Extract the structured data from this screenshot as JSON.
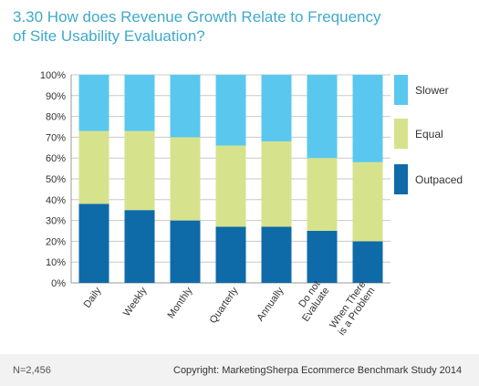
{
  "title": {
    "line1": "3.30 How does Revenue Growth Relate to Frequency",
    "line2": "of Site Usability Evaluation?"
  },
  "footer": {
    "n": "N=2,456",
    "copyright": "Copyright: MarketingSherpa Ecommerce Benchmark Study 2014"
  },
  "chart_data": {
    "type": "bar",
    "stacked": true,
    "categories": [
      [
        "Daily"
      ],
      [
        "Weekly"
      ],
      [
        "Monthly"
      ],
      [
        "Quarterly"
      ],
      [
        "Annually"
      ],
      [
        "Do not",
        "Evaluate"
      ],
      [
        "When There",
        "is a Problem"
      ]
    ],
    "series": [
      {
        "name": "Outpaced",
        "color": "#0f6aa8",
        "values": [
          38,
          35,
          30,
          27,
          27,
          25,
          20
        ]
      },
      {
        "name": "Equal",
        "color": "#d6e38c",
        "values": [
          35,
          38,
          40,
          39,
          41,
          35,
          38
        ]
      },
      {
        "name": "Slower",
        "color": "#5ac8ee",
        "values": [
          27,
          27,
          30,
          34,
          32,
          40,
          42
        ]
      }
    ],
    "ylim": [
      0,
      100
    ],
    "yticks": [
      "0%",
      "10%",
      "20%",
      "30%",
      "40%",
      "50%",
      "60%",
      "70%",
      "80%",
      "90%",
      "100%"
    ],
    "legend_position": "right",
    "legend_order": [
      "Slower",
      "Equal",
      "Outpaced"
    ]
  }
}
